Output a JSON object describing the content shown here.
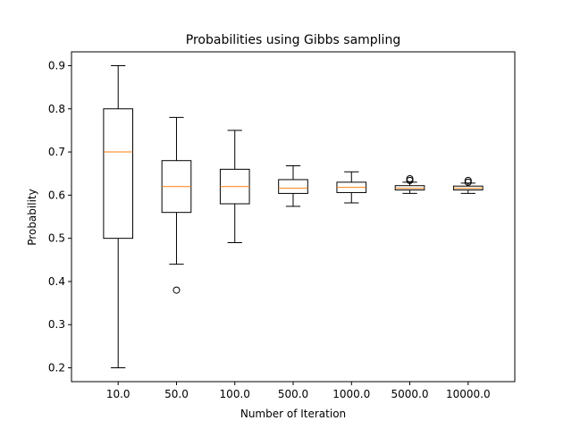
{
  "chart_data": {
    "type": "box",
    "title": "Probabilities using Gibbs sampling",
    "xlabel": "Number of Iteration",
    "ylabel": "Probability",
    "ylim": [
      0.168,
      0.932
    ],
    "yticks": [
      "0.2",
      "0.3",
      "0.4",
      "0.5",
      "0.6",
      "0.7",
      "0.8",
      "0.9"
    ],
    "grid": false,
    "colors": {
      "box": "#000000",
      "median": "#ff7f0e",
      "outlier": "#000000"
    },
    "categories": [
      "10.0",
      "50.0",
      "100.0",
      "500.0",
      "1000.0",
      "5000.0",
      "10000.0"
    ],
    "boxes": [
      {
        "label": "10.0",
        "whisker_low": 0.2,
        "q1": 0.5,
        "median": 0.7,
        "q3": 0.8,
        "whisker_high": 0.9,
        "outliers": []
      },
      {
        "label": "50.0",
        "whisker_low": 0.44,
        "q1": 0.56,
        "median": 0.62,
        "q3": 0.68,
        "whisker_high": 0.78,
        "outliers": [
          0.38
        ]
      },
      {
        "label": "100.0",
        "whisker_low": 0.49,
        "q1": 0.58,
        "median": 0.62,
        "q3": 0.66,
        "whisker_high": 0.75,
        "outliers": []
      },
      {
        "label": "500.0",
        "whisker_low": 0.574,
        "q1": 0.604,
        "median": 0.616,
        "q3": 0.636,
        "whisker_high": 0.668,
        "outliers": []
      },
      {
        "label": "1000.0",
        "whisker_low": 0.582,
        "q1": 0.606,
        "median": 0.618,
        "q3": 0.63,
        "whisker_high": 0.654,
        "outliers": []
      },
      {
        "label": "5000.0",
        "whisker_low": 0.604,
        "q1": 0.612,
        "median": 0.616,
        "q3": 0.622,
        "whisker_high": 0.63,
        "outliers": [
          0.634,
          0.638
        ]
      },
      {
        "label": "10000.0",
        "whisker_low": 0.604,
        "q1": 0.612,
        "median": 0.616,
        "q3": 0.621,
        "whisker_high": 0.628,
        "outliers": [
          0.63,
          0.634
        ]
      }
    ]
  }
}
